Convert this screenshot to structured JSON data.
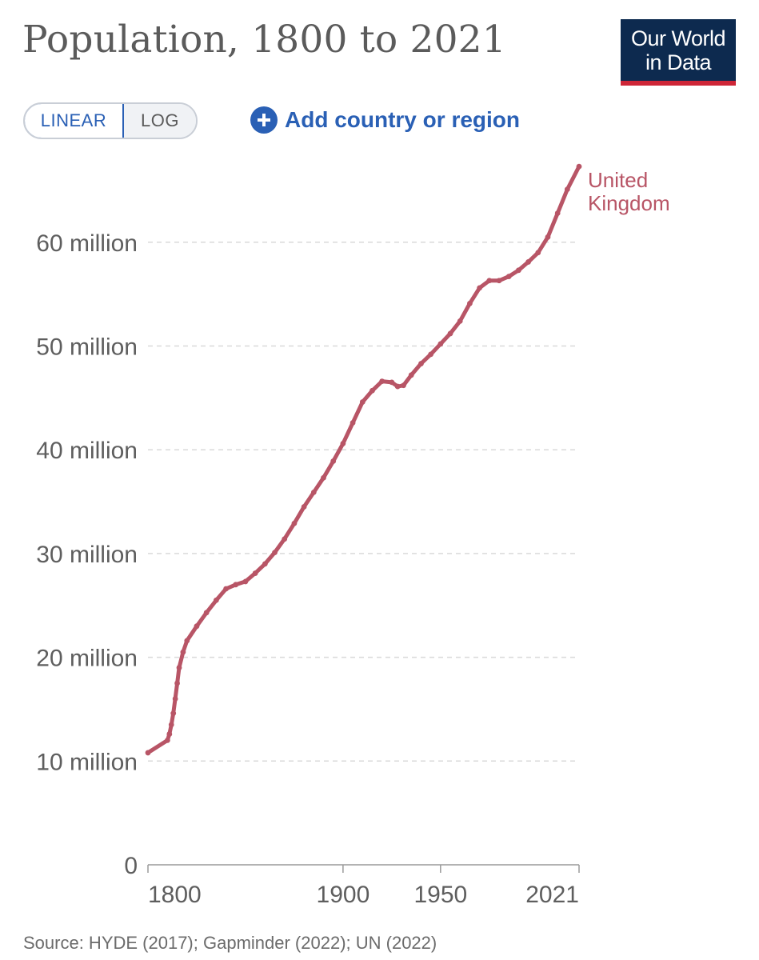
{
  "header": {
    "title": "Population, 1800 to 2021",
    "logo_line1": "Our World",
    "logo_line2": "in Data"
  },
  "controls": {
    "linear_label": "LINEAR",
    "log_label": "LOG",
    "add_country_label": "Add country or region"
  },
  "footer": {
    "source": "Source: HYDE (2017); Gapminder (2022); UN (2022)"
  },
  "colors": {
    "series": "#b85566",
    "accent": "#2a60b5",
    "logo_bg": "#0d2a4f",
    "logo_bar": "#ce2637"
  },
  "chart_data": {
    "type": "line",
    "title": "Population, 1800 to 2021",
    "xlabel": "",
    "ylabel": "",
    "xlim": [
      1800,
      2021
    ],
    "ylim": [
      0,
      67000000
    ],
    "x_ticks": [
      {
        "value": 1800,
        "label": "1800"
      },
      {
        "value": 1900,
        "label": "1900"
      },
      {
        "value": 1950,
        "label": "1950"
      },
      {
        "value": 2021,
        "label": "2021"
      }
    ],
    "y_ticks": [
      {
        "value": 0,
        "label": "0"
      },
      {
        "value": 10000000,
        "label": "10 million"
      },
      {
        "value": 20000000,
        "label": "20 million"
      },
      {
        "value": 30000000,
        "label": "30 million"
      },
      {
        "value": 40000000,
        "label": "40 million"
      },
      {
        "value": 50000000,
        "label": "50 million"
      },
      {
        "value": 60000000,
        "label": "60 million"
      }
    ],
    "grid": "horizontal dashed",
    "series": [
      {
        "name": "United Kingdom",
        "label_lines": [
          "United",
          "Kingdom"
        ],
        "points": [
          [
            1800,
            10800000
          ],
          [
            1810,
            12000000
          ],
          [
            1811,
            12600000
          ],
          [
            1812,
            13500000
          ],
          [
            1813,
            14600000
          ],
          [
            1814,
            16000000
          ],
          [
            1815,
            17500000
          ],
          [
            1816,
            19000000
          ],
          [
            1818,
            20500000
          ],
          [
            1820,
            21600000
          ],
          [
            1825,
            23000000
          ],
          [
            1830,
            24300000
          ],
          [
            1835,
            25500000
          ],
          [
            1840,
            26600000
          ],
          [
            1845,
            27000000
          ],
          [
            1850,
            27300000
          ],
          [
            1855,
            28100000
          ],
          [
            1860,
            29000000
          ],
          [
            1865,
            30100000
          ],
          [
            1870,
            31400000
          ],
          [
            1875,
            32900000
          ],
          [
            1880,
            34500000
          ],
          [
            1885,
            35900000
          ],
          [
            1890,
            37300000
          ],
          [
            1895,
            38900000
          ],
          [
            1900,
            40600000
          ],
          [
            1905,
            42600000
          ],
          [
            1910,
            44600000
          ],
          [
            1915,
            45700000
          ],
          [
            1920,
            46600000
          ],
          [
            1925,
            46500000
          ],
          [
            1928,
            46100000
          ],
          [
            1931,
            46200000
          ],
          [
            1935,
            47200000
          ],
          [
            1940,
            48300000
          ],
          [
            1945,
            49200000
          ],
          [
            1950,
            50200000
          ],
          [
            1955,
            51200000
          ],
          [
            1960,
            52400000
          ],
          [
            1965,
            54100000
          ],
          [
            1970,
            55600000
          ],
          [
            1975,
            56300000
          ],
          [
            1980,
            56300000
          ],
          [
            1985,
            56700000
          ],
          [
            1990,
            57300000
          ],
          [
            1995,
            58100000
          ],
          [
            2000,
            59000000
          ],
          [
            2005,
            60500000
          ],
          [
            2010,
            62800000
          ],
          [
            2015,
            65100000
          ],
          [
            2021,
            67300000
          ]
        ]
      }
    ]
  }
}
